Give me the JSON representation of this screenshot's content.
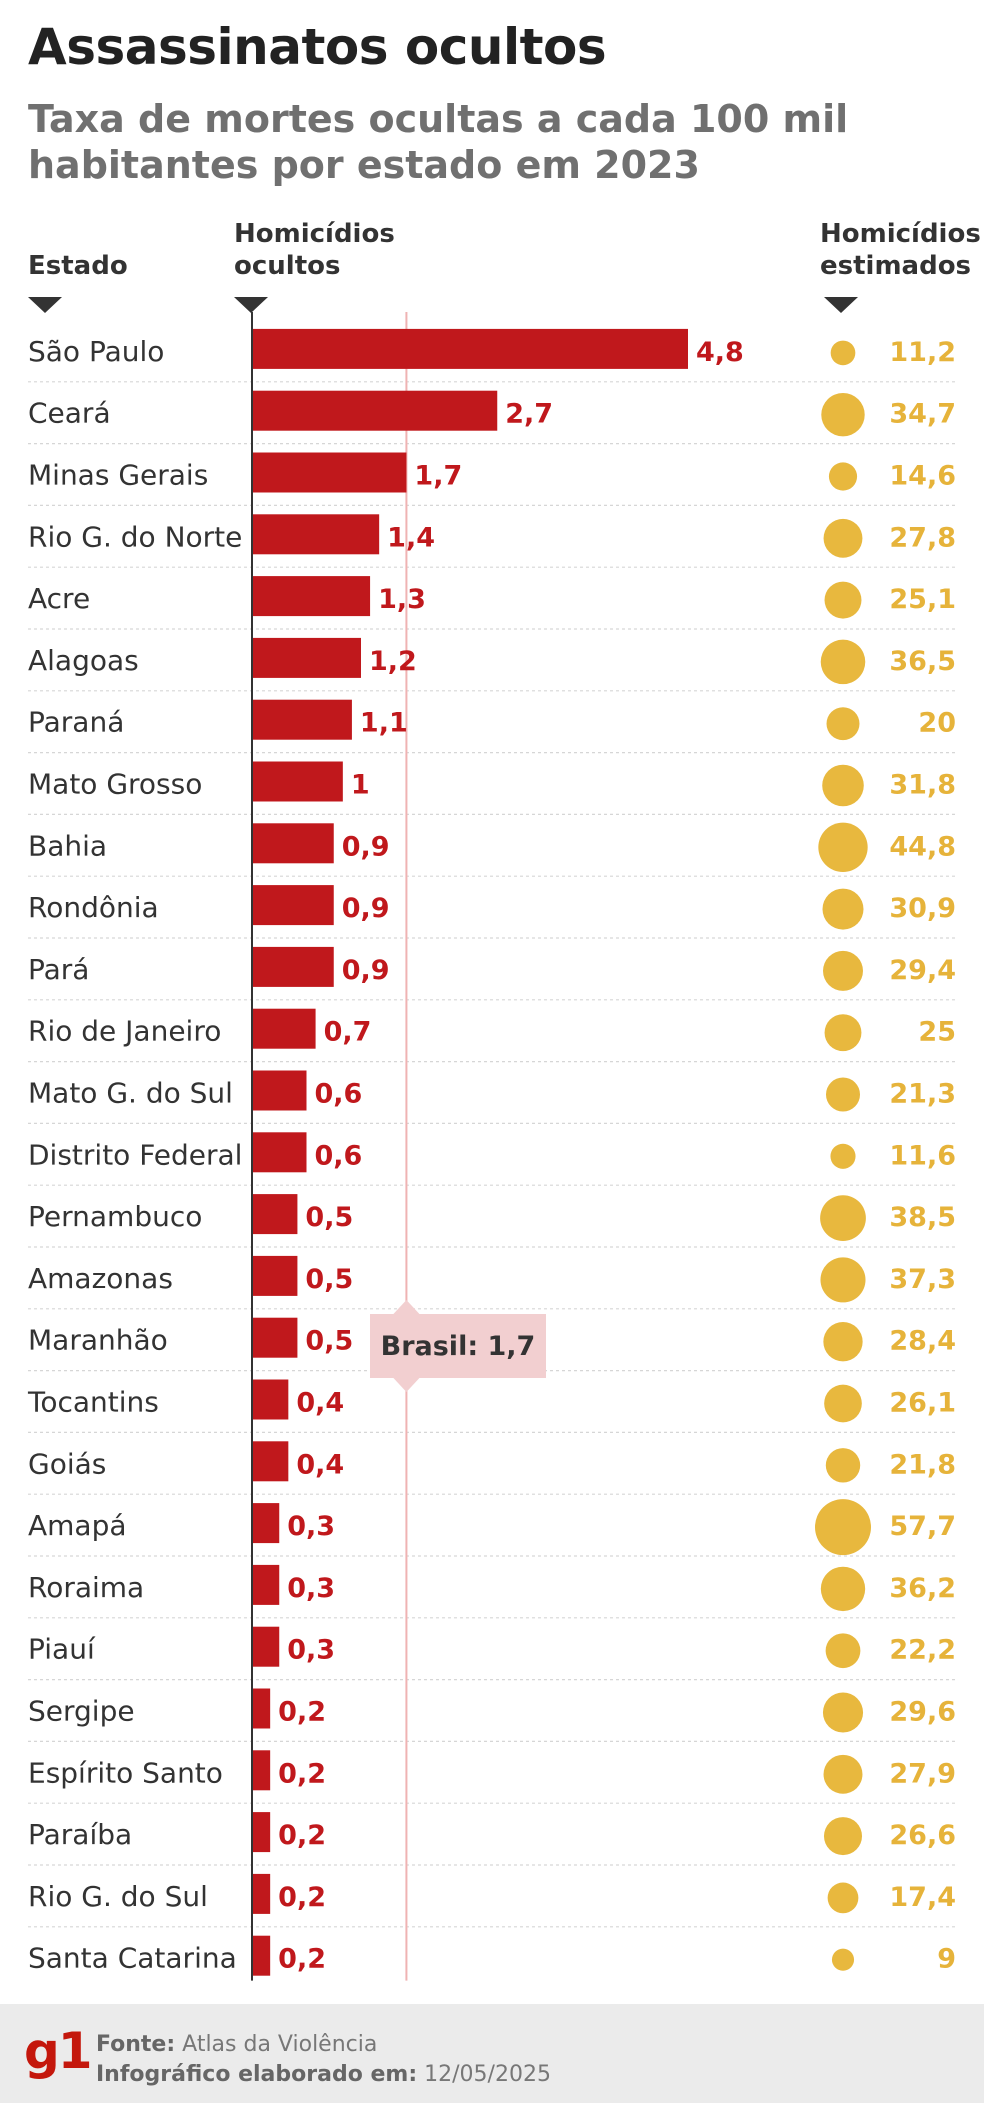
{
  "title": "Assassinatos ocultos",
  "subtitle": "Taxa de mortes ocultas a cada 100 mil habitantes por estado em 2023",
  "columns": {
    "estado": "Estado",
    "ocultos": "Homicídios\nocultos",
    "estimados": "Homicídios\nestimados"
  },
  "colors": {
    "bar": "#c0181c",
    "bubble": "#e8b83e",
    "reference_box": "#f2cfd0",
    "reference_line": "#efb3b3"
  },
  "chart_data": {
    "type": "bar",
    "orientation": "horizontal",
    "categories": [
      "São Paulo",
      "Ceará",
      "Minas Gerais",
      "Rio G. do Norte",
      "Acre",
      "Alagoas",
      "Paraná",
      "Mato Grosso",
      "Bahia",
      "Rondônia",
      "Pará",
      "Rio de Janeiro",
      "Mato G. do Sul",
      "Distrito Federal",
      "Pernambuco",
      "Amazonas",
      "Maranhão",
      "Tocantins",
      "Goiás",
      "Amapá",
      "Roraima",
      "Piauí",
      "Sergipe",
      "Espírito Santo",
      "Paraíba",
      "Rio G. do Sul",
      "Santa Catarina"
    ],
    "series": [
      {
        "name": "Homicídios ocultos",
        "values": [
          4.8,
          2.7,
          1.7,
          1.4,
          1.3,
          1.2,
          1.1,
          1,
          0.9,
          0.9,
          0.9,
          0.7,
          0.6,
          0.6,
          0.5,
          0.5,
          0.5,
          0.4,
          0.4,
          0.3,
          0.3,
          0.3,
          0.2,
          0.2,
          0.2,
          0.2,
          0.2
        ],
        "labels": [
          "4,8",
          "2,7",
          "1,7",
          "1,4",
          "1,3",
          "1,2",
          "1,1",
          "1",
          "0,9",
          "0,9",
          "0,9",
          "0,7",
          "0,6",
          "0,6",
          "0,5",
          "0,5",
          "0,5",
          "0,4",
          "0,4",
          "0,3",
          "0,3",
          "0,3",
          "0,2",
          "0,2",
          "0,2",
          "0,2",
          "0,2"
        ]
      },
      {
        "name": "Homicídios estimados",
        "values": [
          11.2,
          34.7,
          14.6,
          27.8,
          25.1,
          36.5,
          20,
          31.8,
          44.8,
          30.9,
          29.4,
          25,
          21.3,
          11.6,
          38.5,
          37.3,
          28.4,
          26.1,
          21.8,
          57.7,
          36.2,
          22.2,
          29.6,
          27.9,
          26.6,
          17.4,
          9
        ],
        "labels": [
          "11,2",
          "34,7",
          "14,6",
          "27,8",
          "25,1",
          "36,5",
          "20",
          "31,8",
          "44,8",
          "30,9",
          "29,4",
          "25",
          "21,3",
          "11,6",
          "38,5",
          "37,3",
          "28,4",
          "26,1",
          "21,8",
          "57,7",
          "36,2",
          "22,2",
          "29,6",
          "27,9",
          "26,6",
          "17,4",
          "9"
        ]
      }
    ],
    "reference": {
      "label": "Brasil: 1,7",
      "value": 1.7
    },
    "xlim": [
      0,
      4.8
    ],
    "grid": false
  },
  "footer": {
    "logo": "g1",
    "source_label": "Fonte:",
    "source_value": "Atlas da Violência",
    "date_label": "Infográfico elaborado em:",
    "date_value": "12/05/2025"
  }
}
